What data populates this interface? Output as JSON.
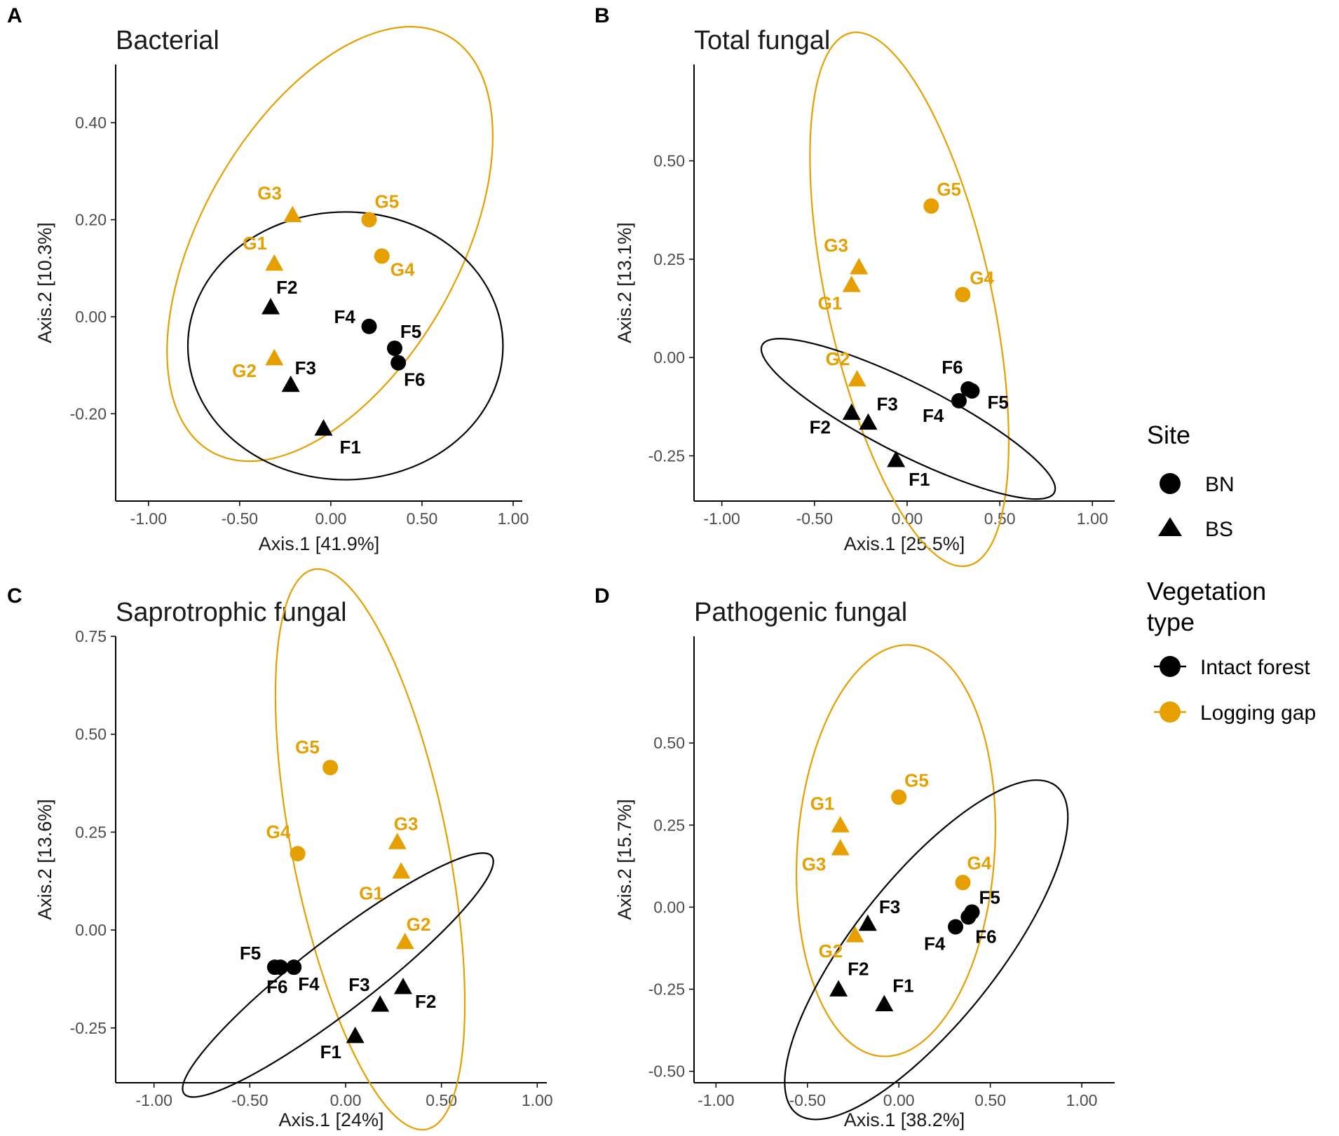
{
  "colors": {
    "intact": "#000000",
    "gap": "#E69F00",
    "axis": "#000000",
    "tick_text": "#4d4d4d"
  },
  "legend": {
    "site_title": "Site",
    "site_items": [
      {
        "label": "BN",
        "shape": "circle"
      },
      {
        "label": "BS",
        "shape": "triangle"
      }
    ],
    "veg_title_line1": "Vegetation",
    "veg_title_line2": "type",
    "veg_items": [
      {
        "label": "Intact forest",
        "group": "intact"
      },
      {
        "label": "Logging gap",
        "group": "gap"
      }
    ]
  },
  "chart_data": [
    {
      "panel": "A",
      "title": "Bacterial",
      "type": "scatter",
      "xlabel": "Axis.1   [41.9%]",
      "ylabel": "Axis.2   [10.3%]",
      "xlim": [
        -1.18,
        1.05
      ],
      "ylim": [
        -0.38,
        0.52
      ],
      "xticks": [
        -1.0,
        -0.5,
        0.0,
        0.5,
        1.0
      ],
      "xtick_labels": [
        "-1.00",
        "-0.50",
        "0.00",
        "0.50",
        "1.00"
      ],
      "yticks": [
        -0.2,
        0.0,
        0.2,
        0.4
      ],
      "ytick_labels": [
        "-0.20",
        "0.00",
        "0.20",
        "0.40"
      ],
      "points": [
        {
          "label": "G1",
          "x": -0.31,
          "y": 0.11,
          "site": "BS",
          "group": "gap"
        },
        {
          "label": "G2",
          "x": -0.31,
          "y": -0.085,
          "site": "BS",
          "group": "gap"
        },
        {
          "label": "G3",
          "x": -0.21,
          "y": 0.21,
          "site": "BS",
          "group": "gap"
        },
        {
          "label": "G4",
          "x": 0.28,
          "y": 0.125,
          "site": "BN",
          "group": "gap"
        },
        {
          "label": "G5",
          "x": 0.21,
          "y": 0.2,
          "site": "BN",
          "group": "gap"
        },
        {
          "label": "F1",
          "x": -0.04,
          "y": -0.23,
          "site": "BS",
          "group": "intact"
        },
        {
          "label": "F2",
          "x": -0.33,
          "y": 0.02,
          "site": "BS",
          "group": "intact"
        },
        {
          "label": "F3",
          "x": -0.22,
          "y": -0.14,
          "site": "BS",
          "group": "intact"
        },
        {
          "label": "F4",
          "x": 0.21,
          "y": -0.02,
          "site": "BN",
          "group": "intact"
        },
        {
          "label": "F5",
          "x": 0.35,
          "y": -0.065,
          "site": "BN",
          "group": "intact"
        },
        {
          "label": "F6",
          "x": 0.37,
          "y": -0.095,
          "site": "BN",
          "group": "intact"
        }
      ],
      "ellipses": [
        {
          "group": "gap",
          "cx": -0.005,
          "cy": 0.15,
          "rx": 0.926,
          "ry": 0.375,
          "angle_deg": 16.8
        },
        {
          "group": "intact",
          "cx": 0.08,
          "cy": -0.06,
          "rx": 0.864,
          "ry": 0.276,
          "angle_deg": 0
        }
      ]
    },
    {
      "panel": "B",
      "title": "Total fungal",
      "type": "scatter",
      "xlabel": "Axis.1   [25.5%]",
      "ylabel": "Axis.2   [13.1%]",
      "xlim": [
        -1.15,
        1.12
      ],
      "ylim": [
        -0.365,
        0.745
      ],
      "xticks": [
        -1.0,
        -0.5,
        0.0,
        0.5,
        1.0
      ],
      "xtick_labels": [
        "-1.00",
        "-0.50",
        "0.00",
        "0.50",
        "1.00"
      ],
      "yticks": [
        -0.25,
        0.0,
        0.25,
        0.5
      ],
      "ytick_labels": [
        "-0.25",
        "0.00",
        "0.25",
        "0.50"
      ],
      "points": [
        {
          "label": "G1",
          "x": -0.3,
          "y": 0.185,
          "site": "BS",
          "group": "gap"
        },
        {
          "label": "G2",
          "x": -0.27,
          "y": -0.055,
          "site": "BS",
          "group": "gap"
        },
        {
          "label": "G3",
          "x": -0.26,
          "y": 0.23,
          "site": "BS",
          "group": "gap"
        },
        {
          "label": "G4",
          "x": 0.3,
          "y": 0.16,
          "site": "BN",
          "group": "gap"
        },
        {
          "label": "G5",
          "x": 0.13,
          "y": 0.385,
          "site": "BN",
          "group": "gap"
        },
        {
          "label": "F1",
          "x": -0.06,
          "y": -0.26,
          "site": "BS",
          "group": "intact"
        },
        {
          "label": "F2",
          "x": -0.3,
          "y": -0.14,
          "site": "BS",
          "group": "intact"
        },
        {
          "label": "F3",
          "x": -0.21,
          "y": -0.165,
          "site": "BS",
          "group": "intact"
        },
        {
          "label": "F4",
          "x": 0.28,
          "y": -0.11,
          "site": "BN",
          "group": "intact"
        },
        {
          "label": "F5",
          "x": 0.35,
          "y": -0.085,
          "site": "BN",
          "group": "intact"
        },
        {
          "label": "F6",
          "x": 0.33,
          "y": -0.08,
          "site": "BN",
          "group": "intact"
        }
      ],
      "ellipses": [
        {
          "group": "gap",
          "cx": 0.012,
          "cy": 0.148,
          "rx": 0.766,
          "ry": 0.402,
          "angle_deg": -57
        },
        {
          "group": "intact",
          "cx": 0.006,
          "cy": -0.156,
          "rx": 0.813,
          "ry": 0.098,
          "angle_deg": -12.8
        }
      ]
    },
    {
      "panel": "C",
      "title": "Saprotrophic fungal",
      "type": "scatter",
      "xlabel": "Axis.1   [24%]",
      "ylabel": "Axis.2   [13.6%]",
      "xlim": [
        -1.2,
        1.05
      ],
      "ylim": [
        -0.39,
        0.75
      ],
      "xticks": [
        -1.0,
        -0.5,
        0.0,
        0.5,
        1.0
      ],
      "xtick_labels": [
        "-1.00",
        "-0.50",
        "0.00",
        "0.50",
        "1.00"
      ],
      "yticks": [
        -0.25,
        0.0,
        0.25,
        0.5,
        0.75
      ],
      "ytick_labels": [
        "-0.25",
        "0.00",
        "0.25",
        "0.50",
        "0.75"
      ],
      "points": [
        {
          "label": "G1",
          "x": 0.29,
          "y": 0.15,
          "site": "BS",
          "group": "gap"
        },
        {
          "label": "G2",
          "x": 0.31,
          "y": -0.03,
          "site": "BS",
          "group": "gap"
        },
        {
          "label": "G3",
          "x": 0.27,
          "y": 0.225,
          "site": "BS",
          "group": "gap"
        },
        {
          "label": "G4",
          "x": -0.25,
          "y": 0.195,
          "site": "BN",
          "group": "gap"
        },
        {
          "label": "G5",
          "x": -0.08,
          "y": 0.415,
          "site": "BN",
          "group": "gap"
        },
        {
          "label": "F1",
          "x": 0.05,
          "y": -0.27,
          "site": "BS",
          "group": "intact"
        },
        {
          "label": "F2",
          "x": 0.3,
          "y": -0.145,
          "site": "BS",
          "group": "intact"
        },
        {
          "label": "F3",
          "x": 0.18,
          "y": -0.19,
          "site": "BS",
          "group": "intact"
        },
        {
          "label": "F4",
          "x": -0.27,
          "y": -0.095,
          "site": "BN",
          "group": "intact"
        },
        {
          "label": "F5",
          "x": -0.37,
          "y": -0.095,
          "site": "BN",
          "group": "intact"
        },
        {
          "label": "F6",
          "x": -0.34,
          "y": -0.095,
          "site": "BN",
          "group": "intact"
        }
      ],
      "ellipses": [
        {
          "group": "gap",
          "cx": 0.128,
          "cy": 0.206,
          "rx": 0.784,
          "ry": 0.377,
          "angle_deg": -62.3
        },
        {
          "group": "intact",
          "cx": -0.04,
          "cy": -0.115,
          "rx": 0.862,
          "ry": 0.107,
          "angle_deg": 20
        }
      ]
    },
    {
      "panel": "D",
      "title": "Pathogenic fungal",
      "type": "scatter",
      "xlabel": "Axis.1   [38.2%]",
      "ylabel": "Axis.2   [15.7%]",
      "xlim": [
        -1.12,
        1.18
      ],
      "ylim": [
        -0.535,
        0.825
      ],
      "xticks": [
        -1.0,
        -0.5,
        0.0,
        0.5,
        1.0
      ],
      "xtick_labels": [
        "-1.00",
        "-0.50",
        "0.00",
        "0.50",
        "1.00"
      ],
      "yticks": [
        -0.5,
        -0.25,
        0.0,
        0.25,
        0.5
      ],
      "ytick_labels": [
        "-0.50",
        "-0.25",
        "0.00",
        "0.25",
        "0.50"
      ],
      "points": [
        {
          "label": "G1",
          "x": -0.32,
          "y": 0.25,
          "site": "BS",
          "group": "gap"
        },
        {
          "label": "G2",
          "x": -0.24,
          "y": -0.085,
          "site": "BS",
          "group": "gap"
        },
        {
          "label": "G3",
          "x": -0.32,
          "y": 0.18,
          "site": "BS",
          "group": "gap"
        },
        {
          "label": "G4",
          "x": 0.35,
          "y": 0.075,
          "site": "BN",
          "group": "gap"
        },
        {
          "label": "G5",
          "x": 0.0,
          "y": 0.335,
          "site": "BN",
          "group": "gap"
        },
        {
          "label": "F1",
          "x": -0.08,
          "y": -0.295,
          "site": "BS",
          "group": "intact"
        },
        {
          "label": "F2",
          "x": -0.33,
          "y": -0.25,
          "site": "BS",
          "group": "intact"
        },
        {
          "label": "F3",
          "x": -0.17,
          "y": -0.05,
          "site": "BS",
          "group": "intact"
        },
        {
          "label": "F4",
          "x": 0.31,
          "y": -0.06,
          "site": "BN",
          "group": "intact"
        },
        {
          "label": "F5",
          "x": 0.4,
          "y": -0.015,
          "site": "BN",
          "group": "intact"
        },
        {
          "label": "F6",
          "x": 0.38,
          "y": -0.03,
          "site": "BN",
          "group": "intact"
        }
      ],
      "ellipses": [
        {
          "group": "gap",
          "cx": -0.016,
          "cy": 0.172,
          "rx": 0.637,
          "ry": 0.532,
          "angle_deg": 71
        },
        {
          "group": "intact",
          "cx": 0.15,
          "cy": -0.13,
          "rx": 0.887,
          "ry": 0.282,
          "angle_deg": 31
        }
      ]
    }
  ]
}
